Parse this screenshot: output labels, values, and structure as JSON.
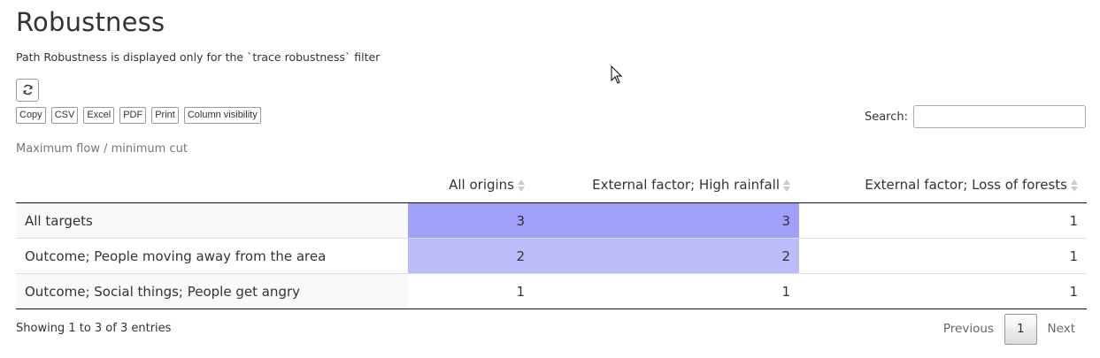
{
  "page": {
    "title": "Robustness",
    "subtitle": "Path Robustness is displayed only for the `trace robustness` filter",
    "caption": "Maximum flow / minimum cut"
  },
  "toolbar": {
    "refresh_icon": "refresh-icon",
    "buttons": [
      "Copy",
      "CSV",
      "Excel",
      "PDF",
      "Print",
      "Column visibility"
    ]
  },
  "search": {
    "label": "Search:",
    "value": ""
  },
  "table": {
    "headers": [
      "",
      "All origins",
      "External factor; High rainfall",
      "External factor; Loss of forests"
    ],
    "rows": [
      {
        "label": "All targets",
        "values": [
          "3",
          "3",
          "1"
        ]
      },
      {
        "label": "Outcome; People moving away from the area",
        "values": [
          "2",
          "2",
          "1"
        ]
      },
      {
        "label": "Outcome; Social things; People get angry",
        "values": [
          "1",
          "1",
          "1"
        ]
      }
    ],
    "cell_colors": [
      [
        "#a0a0f8",
        "#a0a0f8",
        "#ffffff"
      ],
      [
        "#bcbcfb",
        "#bcbcfb",
        "#ffffff"
      ],
      [
        "#ffffff",
        "#ffffff",
        "#ffffff"
      ]
    ]
  },
  "footer": {
    "info": "Showing 1 to 3 of 3 entries",
    "previous": "Previous",
    "page": "1",
    "next": "Next"
  }
}
